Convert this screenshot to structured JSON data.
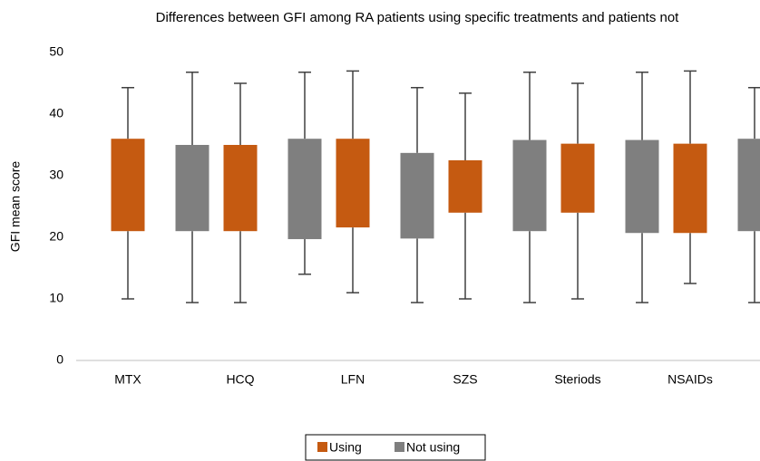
{
  "chart_data": {
    "type": "box",
    "title": "Differences between GFI among RA patients using specific treatments and patients not",
    "y_label": "GFI mean score",
    "categories": [
      "MTX",
      "HCQ",
      "LFN",
      "SZS",
      "Steriods",
      "NSAIDs"
    ],
    "ylim": [
      0,
      50
    ],
    "yticks": [
      0,
      10,
      20,
      30,
      40,
      50
    ],
    "grid": false,
    "legend": "bottom",
    "series": [
      {
        "name": "Using",
        "color": "#c55a11",
        "min": [
          10,
          9.4,
          11,
          10,
          10,
          12.5
        ],
        "q1": [
          21,
          21,
          21.6,
          24,
          24,
          20.7
        ],
        "q3": [
          36,
          35,
          36,
          32.5,
          35.2,
          35.2
        ],
        "max": [
          44.3,
          45,
          47,
          43.4,
          45,
          47
        ]
      },
      {
        "name": "Not using",
        "color": "#7f7f7f",
        "min": [
          9.4,
          14,
          9.4,
          9.4,
          9.4,
          9.4
        ],
        "q1": [
          21,
          19.7,
          19.8,
          21,
          20.7,
          21
        ],
        "q3": [
          35,
          36,
          33.7,
          35.8,
          35.8,
          36
        ],
        "max": [
          46.8,
          46.8,
          44.3,
          46.8,
          46.8,
          44.3
        ]
      }
    ]
  }
}
